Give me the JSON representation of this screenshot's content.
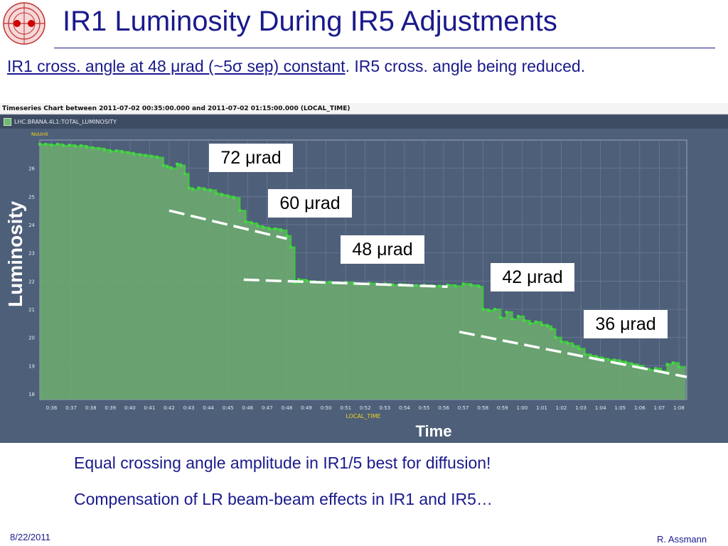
{
  "header": {
    "title": "IR1 Luminosity During IR5 Adjustments",
    "subtitle_underlined": "IR1 cross. angle at 48 μrad (~5σ sep) constant",
    "subtitle_rest": ". IR5 cross. angle being reduced."
  },
  "timeseries": {
    "header": "Timeseries Chart between 2011-07-02 00:35:00.000 and 2011-07-02 01:15:00.000 (LOCAL_TIME)",
    "legend_label": "LHC.BRANA.4L1:TOTAL_LUMINOSITY",
    "unit_label": "NoUnit"
  },
  "side_labels": {
    "ylabel": "Luminosity",
    "xlabel": "Time"
  },
  "angle_labels": [
    "72 μrad",
    "60 μrad",
    "48 μrad",
    "42 μrad",
    "36 μrad"
  ],
  "bullets": [
    "Equal crossing angle amplitude in IR1/5 best for diffusion!",
    "Compensation of LR beam-beam effects in IR1 and IR5…"
  ],
  "footer": {
    "date": "8/22/2011",
    "author": "R. Assmann"
  },
  "colors": {
    "title": "#1a1a8c",
    "panel": "#4e5f79",
    "area_fill": "#6dab70",
    "line": "#3fc73f",
    "trend": "#ffffff"
  },
  "chart_data": {
    "type": "area",
    "xlabel": "LOCAL_TIME",
    "ylabel": "NoUnit",
    "ylim": [
      17.8,
      27.0
    ],
    "xlim": [
      35.4,
      68.4
    ],
    "yticks": [
      18,
      19,
      20,
      21,
      22,
      23,
      24,
      25,
      26
    ],
    "xticks": [
      "0:36",
      "0:37",
      "0:38",
      "0:39",
      "0:40",
      "0:41",
      "0:42",
      "0:43",
      "0:44",
      "0:45",
      "0:46",
      "0:47",
      "0:48",
      "0:49",
      "0:50",
      "0:51",
      "0:52",
      "0:53",
      "0:54",
      "0:55",
      "0:56",
      "0:57",
      "0:58",
      "0:59",
      "1:00",
      "1:01",
      "1:02",
      "1:03",
      "1:04",
      "1:05",
      "1:06",
      "1:07",
      "1:08"
    ],
    "grid": true,
    "series": [
      {
        "x": [
          35.4,
          35.7,
          36.0,
          36.3,
          36.6,
          36.9,
          37.2,
          37.5,
          37.8,
          38.1,
          38.4,
          38.7,
          39.0,
          39.3,
          39.6,
          39.9,
          40.2,
          40.5,
          40.8,
          41.1,
          41.4,
          41.7,
          41.9,
          42.1,
          42.4,
          42.6,
          42.8,
          43.0,
          43.2,
          43.5,
          43.8,
          44.1,
          44.4,
          44.7,
          45.0,
          45.3,
          45.6,
          45.9,
          46.2,
          46.5,
          46.8,
          47.1,
          47.4,
          47.7,
          48.0,
          48.2,
          48.4,
          48.6,
          49.0,
          49.4,
          49.8,
          50.2,
          50.6,
          51.0,
          51.4,
          51.8,
          52.2,
          52.6,
          53.0,
          53.4,
          53.8,
          54.2,
          54.6,
          55.0,
          55.4,
          55.8,
          56.2,
          56.6,
          57.0,
          57.4,
          57.8,
          58.0,
          58.3,
          58.6,
          58.9,
          59.2,
          59.5,
          59.8,
          60.1,
          60.4,
          60.7,
          61.0,
          61.3,
          61.5,
          61.7,
          62.0,
          62.3,
          62.6,
          62.9,
          63.2,
          63.5,
          63.8,
          64.1,
          64.4,
          64.7,
          65.0,
          65.3,
          65.6,
          65.9,
          66.2,
          66.5,
          66.8,
          67.1,
          67.4,
          67.7,
          68.0
        ],
        "y": [
          26.85,
          26.85,
          26.82,
          26.85,
          26.8,
          26.82,
          26.78,
          26.8,
          26.75,
          26.72,
          26.7,
          26.65,
          26.6,
          26.62,
          26.58,
          26.55,
          26.5,
          26.48,
          26.45,
          26.42,
          26.38,
          26.1,
          26.05,
          26.0,
          26.15,
          26.1,
          25.8,
          25.3,
          25.25,
          25.3,
          25.25,
          25.22,
          25.1,
          25.05,
          25.0,
          24.95,
          24.5,
          24.1,
          24.05,
          23.95,
          23.9,
          23.85,
          23.85,
          23.8,
          23.6,
          23.2,
          21.95,
          22.05,
          22.0,
          21.98,
          21.95,
          21.96,
          21.93,
          21.95,
          21.92,
          21.9,
          21.92,
          21.88,
          21.9,
          21.86,
          21.88,
          21.85,
          21.84,
          21.85,
          21.83,
          21.82,
          21.86,
          21.82,
          21.9,
          21.85,
          21.8,
          21.0,
          20.95,
          21.0,
          20.7,
          20.9,
          20.65,
          20.75,
          20.6,
          20.5,
          20.55,
          20.45,
          20.4,
          20.3,
          20.0,
          19.85,
          19.8,
          19.7,
          19.6,
          19.4,
          19.35,
          19.3,
          19.25,
          19.2,
          19.2,
          19.15,
          19.1,
          19.05,
          19.0,
          18.9,
          18.85,
          18.9,
          18.8,
          19.05,
          19.1,
          18.95
        ]
      }
    ],
    "trend_lines": [
      {
        "x": [
          42.0,
          48.0
        ],
        "y": [
          24.5,
          23.5
        ]
      },
      {
        "x": [
          45.8,
          56.2
        ],
        "y": [
          22.05,
          21.8
        ]
      },
      {
        "x": [
          56.8,
          68.4
        ],
        "y": [
          20.2,
          18.6
        ]
      }
    ]
  }
}
